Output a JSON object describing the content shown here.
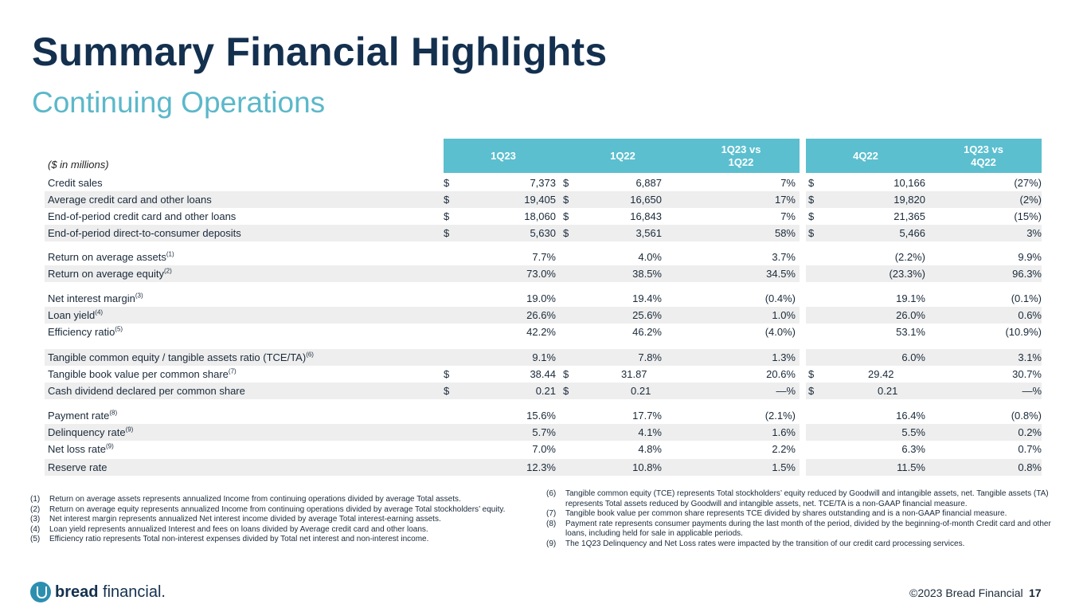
{
  "title": "Summary Financial Highlights",
  "subtitle": "Continuing Operations",
  "unit_label": "($ in millions)",
  "columns": {
    "c1": "1Q23",
    "c2": "1Q22",
    "c3a": "1Q23 vs",
    "c3b": "1Q22",
    "c4": "4Q22",
    "c5a": "1Q23 vs",
    "c5b": "4Q22"
  },
  "rows": [
    {
      "label": "Credit sales",
      "d1": "$",
      "v1": "7,373",
      "d2": "$",
      "v2": "6,887",
      "v3": "7%",
      "d4": "$",
      "v4": "10,166",
      "v5": "(27%)"
    },
    {
      "label": "Average credit card and other loans",
      "d1": "$",
      "v1": "19,405",
      "d2": "$",
      "v2": "16,650",
      "v3": "17%",
      "d4": "$",
      "v4": "19,820",
      "v5": "(2%)"
    },
    {
      "label": "End-of-period credit card and other loans",
      "d1": "$",
      "v1": "18,060",
      "d2": "$",
      "v2": "16,843",
      "v3": "7%",
      "d4": "$",
      "v4": "21,365",
      "v5": "(15%)"
    },
    {
      "label": "End-of-period direct-to-consumer deposits",
      "d1": "$",
      "v1": "5,630",
      "d2": "$",
      "v2": "3,561",
      "v3": "58%",
      "d4": "$",
      "v4": "5,466",
      "v5": "3%"
    },
    {
      "label": "Return on average assets",
      "sup": "(1)",
      "v1": "7.7%",
      "v2": "4.0%",
      "v3": "3.7%",
      "v4": "(2.2%)",
      "v5": "9.9%"
    },
    {
      "label": "Return on average equity",
      "sup": "(2)",
      "v1": "73.0%",
      "v2": "38.5%",
      "v3": "34.5%",
      "v4": "(23.3%)",
      "v5": "96.3%"
    },
    {
      "label": "Net interest margin",
      "sup": "(3)",
      "v1": "19.0%",
      "v2": "19.4%",
      "v3": "(0.4%)",
      "v4": "19.1%",
      "v5": "(0.1%)"
    },
    {
      "label": "Loan yield",
      "sup": "(4)",
      "v1": "26.6%",
      "v2": "25.6%",
      "v3": "1.0%",
      "v4": "26.0%",
      "v5": "0.6%"
    },
    {
      "label": "Efficiency ratio",
      "sup": "(5)",
      "v1": "42.2%",
      "v2": "46.2%",
      "v3": "(4.0%)",
      "v4": "53.1%",
      "v5": "(10.9%)"
    },
    {
      "label": "Tangible common equity / tangible assets ratio (TCE/TA)",
      "sup": "(6)",
      "v1": "9.1%",
      "v2": "7.8%",
      "v3": "1.3%",
      "v4": "6.0%",
      "v5": "3.1%"
    },
    {
      "label": "Tangible book value per common share",
      "sup": "(7)",
      "d1": "$",
      "v1": "38.44",
      "d2": "$",
      "v2": "31.87",
      "v3": "20.6%",
      "d4": "$",
      "v4": "29.42",
      "v5": "30.7%"
    },
    {
      "label": "Cash dividend declared per common share",
      "d1": "$",
      "v1": "0.21",
      "d2": "$",
      "v2": "0.21",
      "v3": "—%",
      "d4": "$",
      "v4": "0.21",
      "v5": "—%"
    },
    {
      "label": "Payment rate",
      "sup": "(8)",
      "v1": "15.6%",
      "v2": "17.7%",
      "v3": "(2.1%)",
      "v4": "16.4%",
      "v5": "(0.8%)"
    },
    {
      "label": "Delinquency rate",
      "sup": "(9)",
      "v1": "5.7%",
      "v2": "4.1%",
      "v3": "1.6%",
      "v4": "5.5%",
      "v5": "0.2%"
    },
    {
      "label": "Net loss rate",
      "sup": "(9)",
      "v1": "7.0%",
      "v2": "4.8%",
      "v3": "2.2%",
      "v4": "6.3%",
      "v5": "0.7%"
    },
    {
      "label": "Reserve rate",
      "v1": "12.3%",
      "v2": "10.8%",
      "v3": "1.5%",
      "v4": "11.5%",
      "v5": "0.8%"
    }
  ],
  "footnotes_left": [
    {
      "num": "(1)",
      "text": "Return on average assets represents annualized Income from continuing operations divided by average Total assets."
    },
    {
      "num": "(2)",
      "text": "Return on average equity represents annualized Income from continuing operations divided by average Total stockholders’ equity."
    },
    {
      "num": "(3)",
      "text": "Net interest margin represents annualized Net interest income divided by average Total interest-earning assets."
    },
    {
      "num": "(4)",
      "text": "Loan yield represents annualized Interest and fees on loans divided by Average credit card and other loans."
    },
    {
      "num": "(5)",
      "text": "Efficiency ratio represents Total non-interest expenses divided by Total net interest and non-interest income."
    }
  ],
  "footnotes_right": [
    {
      "num": "(6)",
      "text": "Tangible common equity (TCE) represents Total stockholders’ equity reduced by Goodwill and intangible assets, net. Tangible assets (TA) represents Total assets reduced by Goodwill and intangible assets, net. TCE/TA is a non-GAAP financial measure."
    },
    {
      "num": "(7)",
      "text": "Tangible book value per common share represents TCE divided by shares outstanding and is a non-GAAP financial measure."
    },
    {
      "num": "(8)",
      "text": "Payment rate represents consumer payments during the last month of the period, divided by the beginning-of-month Credit card and other loans, including held for sale in applicable periods."
    },
    {
      "num": "(9)",
      "text": "The 1Q23 Delinquency and Net Loss rates were impacted by the transition of our credit card processing services."
    }
  ],
  "footer": {
    "logo_bold": "bread",
    "logo_light": " financial",
    "logo_mark": ".",
    "copyright": "©2023 Bread Financial",
    "page": "17"
  }
}
